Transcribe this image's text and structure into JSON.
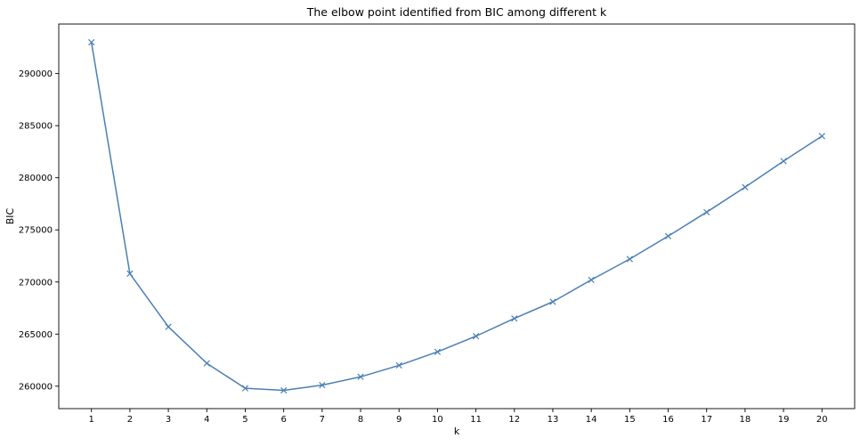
{
  "chart_data": {
    "type": "line",
    "title": "The elbow point identified from BIC among different k",
    "xlabel": "k",
    "ylabel": "BIC",
    "x": [
      1,
      2,
      3,
      4,
      5,
      6,
      7,
      8,
      9,
      10,
      11,
      12,
      13,
      14,
      15,
      16,
      17,
      18,
      19,
      20
    ],
    "series": [
      {
        "values": [
          293000,
          270800,
          265700,
          262200,
          259800,
          259600,
          260100,
          260900,
          262000,
          263300,
          264800,
          266500,
          268100,
          270200,
          272200,
          274400,
          276700,
          279100,
          281600,
          284000
        ],
        "color": "#4a7fb2",
        "marker": "x"
      }
    ],
    "xticks": [
      "1",
      "2",
      "3",
      "4",
      "5",
      "6",
      "7",
      "8",
      "9",
      "10",
      "11",
      "12",
      "13",
      "14",
      "15",
      "16",
      "17",
      "18",
      "19",
      "20"
    ],
    "yticks": [
      260000,
      265000,
      270000,
      275000,
      280000,
      285000,
      290000
    ],
    "ytick_labels": [
      "260000",
      "265000",
      "270000",
      "275000",
      "280000",
      "285000",
      "290000"
    ],
    "xlim": [
      0.15,
      20.85
    ],
    "ylim": [
      257850,
      294750
    ],
    "grid": false,
    "legend": "none"
  }
}
